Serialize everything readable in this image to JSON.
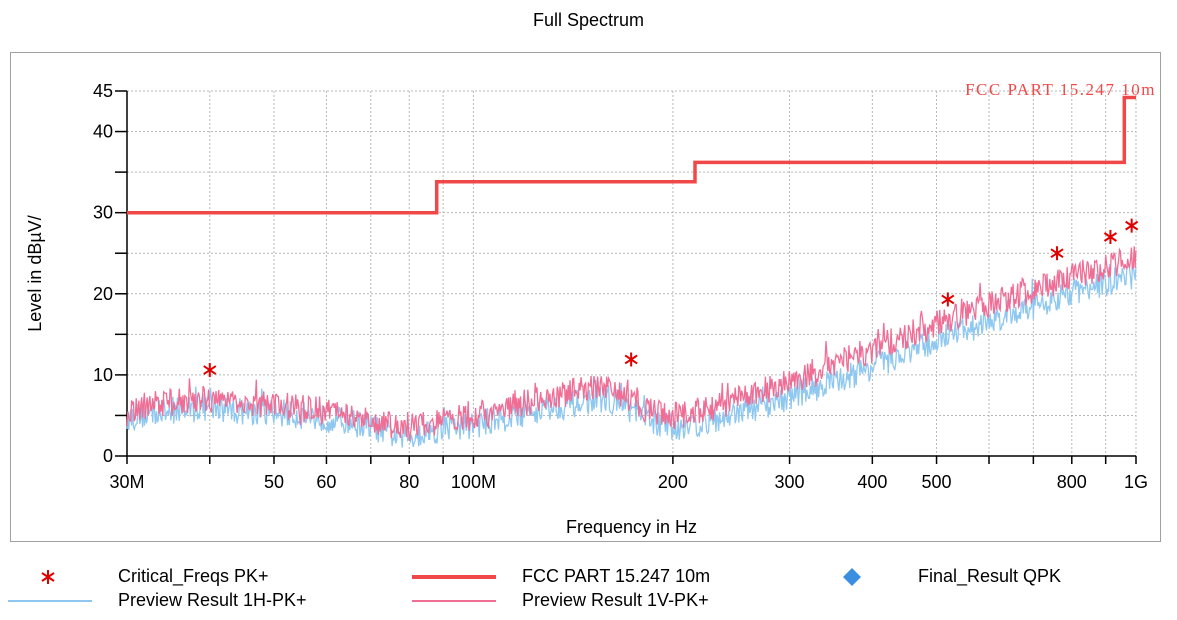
{
  "title": "Full Spectrum",
  "chart_data": {
    "type": "line",
    "xscale": "log",
    "xlim": [
      30000000,
      1000000000
    ],
    "ylim": [
      0,
      45
    ],
    "xlabel": "Frequency in Hz",
    "ylabel": "Level in dBµV/",
    "xticks": [
      {
        "value": 30000000,
        "label": "30M"
      },
      {
        "value": 50000000,
        "label": "50"
      },
      {
        "value": 60000000,
        "label": "60"
      },
      {
        "value": 80000000,
        "label": "80"
      },
      {
        "value": 100000000,
        "label": "100M"
      },
      {
        "value": 200000000,
        "label": "200"
      },
      {
        "value": 300000000,
        "label": "300"
      },
      {
        "value": 400000000,
        "label": "400"
      },
      {
        "value": 500000000,
        "label": "500"
      },
      {
        "value": 800000000,
        "label": "800"
      },
      {
        "value": 1000000000,
        "label": "1G"
      }
    ],
    "yticks": [
      {
        "value": 0,
        "label": "0"
      },
      {
        "value": 10,
        "label": "10"
      },
      {
        "value": 20,
        "label": "20"
      },
      {
        "value": 30,
        "label": "30"
      },
      {
        "value": 40,
        "label": "40"
      },
      {
        "value": 45,
        "label": "45"
      }
    ],
    "grid": true,
    "limit_line": {
      "name": "FCC PART 15.247 10m",
      "label": "FCC PART 15.247 10m",
      "color": "#f04848",
      "points": [
        [
          30000000,
          30.0
        ],
        [
          88000000,
          30.0
        ],
        [
          88000000,
          33.8
        ],
        [
          216000000,
          33.8
        ],
        [
          216000000,
          36.2
        ],
        [
          960000000,
          36.2
        ],
        [
          960000000,
          44.2
        ],
        [
          1000000000,
          44.2
        ]
      ]
    },
    "series": [
      {
        "name": "Preview Result 1H-PK+",
        "color": "#8ec8f0",
        "points": [
          [
            30000000,
            4.7
          ],
          [
            33000000,
            5.3
          ],
          [
            36000000,
            5.6
          ],
          [
            39000000,
            6.0
          ],
          [
            42000000,
            5.7
          ],
          [
            46000000,
            5.5
          ],
          [
            50000000,
            5.2
          ],
          [
            55000000,
            5.0
          ],
          [
            60000000,
            4.6
          ],
          [
            66000000,
            4.1
          ],
          [
            72000000,
            3.3
          ],
          [
            78000000,
            2.2
          ],
          [
            82000000,
            2.7
          ],
          [
            88000000,
            3.2
          ],
          [
            95000000,
            3.6
          ],
          [
            100000000,
            3.8
          ],
          [
            110000000,
            4.6
          ],
          [
            120000000,
            5.3
          ],
          [
            130000000,
            6.0
          ],
          [
            140000000,
            6.3
          ],
          [
            150000000,
            6.8
          ],
          [
            160000000,
            7.1
          ],
          [
            170000000,
            6.1
          ],
          [
            180000000,
            4.8
          ],
          [
            190000000,
            4.0
          ],
          [
            200000000,
            3.6
          ],
          [
            215000000,
            3.8
          ],
          [
            230000000,
            4.4
          ],
          [
            250000000,
            5.3
          ],
          [
            280000000,
            6.5
          ],
          [
            300000000,
            7.3
          ],
          [
            330000000,
            8.5
          ],
          [
            360000000,
            9.6
          ],
          [
            400000000,
            11.0
          ],
          [
            450000000,
            12.7
          ],
          [
            500000000,
            14.2
          ],
          [
            550000000,
            15.5
          ],
          [
            600000000,
            16.6
          ],
          [
            650000000,
            17.6
          ],
          [
            700000000,
            18.5
          ],
          [
            750000000,
            19.3
          ],
          [
            800000000,
            20.1
          ],
          [
            850000000,
            20.7
          ],
          [
            900000000,
            21.3
          ],
          [
            950000000,
            21.8
          ],
          [
            1000000000,
            22.2
          ]
        ]
      },
      {
        "name": "Preview Result 1V-PK+",
        "color": "#f06e96",
        "points": [
          [
            30000000,
            5.8
          ],
          [
            33000000,
            6.4
          ],
          [
            36000000,
            6.7
          ],
          [
            39000000,
            7.0
          ],
          [
            42000000,
            6.8
          ],
          [
            46000000,
            6.6
          ],
          [
            50000000,
            6.3
          ],
          [
            55000000,
            6.0
          ],
          [
            60000000,
            5.6
          ],
          [
            66000000,
            5.0
          ],
          [
            72000000,
            4.3
          ],
          [
            78000000,
            3.3
          ],
          [
            82000000,
            3.7
          ],
          [
            88000000,
            4.1
          ],
          [
            95000000,
            4.6
          ],
          [
            100000000,
            4.9
          ],
          [
            110000000,
            5.8
          ],
          [
            120000000,
            6.6
          ],
          [
            130000000,
            7.4
          ],
          [
            140000000,
            7.8
          ],
          [
            150000000,
            8.3
          ],
          [
            160000000,
            8.6
          ],
          [
            170000000,
            7.4
          ],
          [
            180000000,
            6.0
          ],
          [
            190000000,
            5.3
          ],
          [
            200000000,
            5.0
          ],
          [
            215000000,
            5.3
          ],
          [
            230000000,
            6.0
          ],
          [
            250000000,
            7.0
          ],
          [
            280000000,
            8.3
          ],
          [
            300000000,
            9.2
          ],
          [
            330000000,
            10.5
          ],
          [
            360000000,
            11.7
          ],
          [
            400000000,
            13.1
          ],
          [
            450000000,
            14.8
          ],
          [
            500000000,
            16.3
          ],
          [
            550000000,
            17.5
          ],
          [
            600000000,
            18.6
          ],
          [
            650000000,
            19.6
          ],
          [
            700000000,
            20.5
          ],
          [
            750000000,
            21.3
          ],
          [
            800000000,
            22.1
          ],
          [
            850000000,
            22.8
          ],
          [
            900000000,
            23.4
          ],
          [
            950000000,
            23.9
          ],
          [
            1000000000,
            24.3
          ]
        ]
      }
    ],
    "critical_freqs": {
      "name": "Critical_Freqs PK+",
      "color": "#e00000",
      "points": [
        [
          40000000,
          10.6
        ],
        [
          173000000,
          11.9
        ],
        [
          520000000,
          19.3
        ],
        [
          760000000,
          25.0
        ],
        [
          915000000,
          27.0
        ],
        [
          985000000,
          28.4
        ]
      ]
    },
    "final_result": {
      "name": "Final_Result QPK",
      "color": "#3a8fe0",
      "points": []
    }
  },
  "legend": {
    "critical": "Critical_Freqs PK+",
    "limit": "FCC PART 15.247 10m",
    "final": "Final_Result QPK",
    "preview_h": "Preview Result 1H-PK+",
    "preview_v": "Preview Result 1V-PK+"
  }
}
